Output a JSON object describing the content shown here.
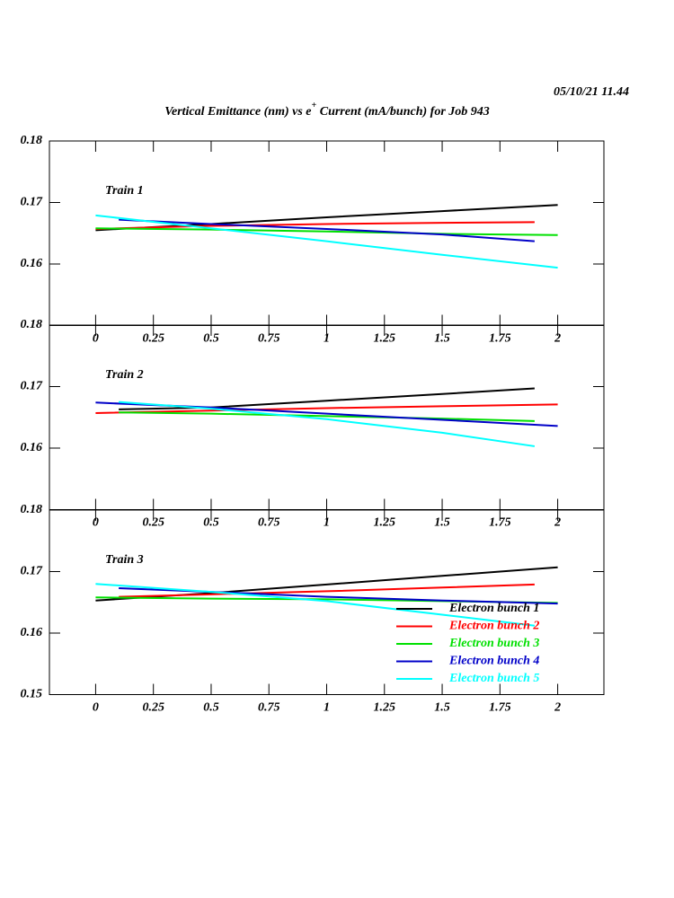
{
  "title": {
    "before": "Vertical Emittance (nm) vs e",
    "sup": "+",
    "after": " Current (mA/bunch) for Job 943"
  },
  "timestamp": "05/10/21   11.44",
  "chart_data": [
    {
      "type": "line",
      "title": "Train 1",
      "xlim": [
        -0.2,
        2.2
      ],
      "ylim": [
        0.15,
        0.18
      ],
      "xticks": [
        0,
        0.25,
        0.5,
        0.75,
        1,
        1.25,
        1.5,
        1.75,
        2
      ],
      "yticks": [
        0.16,
        0.17,
        0.18
      ],
      "series": [
        {
          "color": "#000000",
          "x": [
            0,
            0.5,
            1,
            1.5,
            2
          ],
          "values": [
            0.1655,
            0.1665,
            0.1676,
            0.1686,
            0.1696
          ]
        },
        {
          "color": "#ff0000",
          "x": [
            0,
            0.5,
            1,
            1.5,
            1.9
          ],
          "values": [
            0.1657,
            0.1662,
            0.1665,
            0.1667,
            0.1668
          ]
        },
        {
          "color": "#00e000",
          "x": [
            0,
            0.5,
            1,
            1.5,
            2
          ],
          "values": [
            0.1658,
            0.1656,
            0.1653,
            0.1649,
            0.1647
          ]
        },
        {
          "color": "#0000c8",
          "x": [
            0.1,
            0.5,
            1,
            1.5,
            1.9
          ],
          "values": [
            0.1672,
            0.1665,
            0.1657,
            0.1648,
            0.1637
          ]
        },
        {
          "color": "#00ffff",
          "x": [
            0,
            0.5,
            1,
            1.5,
            2
          ],
          "values": [
            0.1679,
            0.1658,
            0.1637,
            0.1615,
            0.1594
          ]
        }
      ]
    },
    {
      "type": "line",
      "title": "Train 2",
      "xlim": [
        -0.2,
        2.2
      ],
      "ylim": [
        0.15,
        0.18
      ],
      "xticks": [
        0,
        0.25,
        0.5,
        0.75,
        1,
        1.25,
        1.5,
        1.75,
        2
      ],
      "yticks": [
        0.16,
        0.17,
        0.18
      ],
      "series": [
        {
          "color": "#000000",
          "x": [
            0.1,
            0.5,
            1,
            1.5,
            1.9
          ],
          "values": [
            0.1663,
            0.1666,
            0.1677,
            0.1688,
            0.1697
          ]
        },
        {
          "color": "#ff0000",
          "x": [
            0,
            0.5,
            1,
            1.5,
            2
          ],
          "values": [
            0.1657,
            0.1661,
            0.1665,
            0.1668,
            0.1671
          ]
        },
        {
          "color": "#00e000",
          "x": [
            0.1,
            0.5,
            1,
            1.5,
            1.9
          ],
          "values": [
            0.1658,
            0.1656,
            0.1652,
            0.1648,
            0.1644
          ]
        },
        {
          "color": "#0000c8",
          "x": [
            0,
            0.5,
            1,
            1.5,
            2
          ],
          "values": [
            0.1674,
            0.1666,
            0.1656,
            0.1646,
            0.1636
          ]
        },
        {
          "color": "#00ffff",
          "x": [
            0.1,
            0.5,
            1,
            1.5,
            1.9
          ],
          "values": [
            0.1675,
            0.1664,
            0.1647,
            0.1625,
            0.1603
          ]
        }
      ]
    },
    {
      "type": "line",
      "title": "Train 3",
      "xlim": [
        -0.2,
        2.2
      ],
      "ylim": [
        0.15,
        0.18
      ],
      "xticks": [
        0,
        0.25,
        0.5,
        0.75,
        1,
        1.25,
        1.5,
        1.75,
        2
      ],
      "yticks": [
        0.15,
        0.16,
        0.17,
        0.18
      ],
      "series": [
        {
          "name": "Electron bunch 1",
          "color": "#000000",
          "x": [
            0,
            0.5,
            1,
            1.5,
            2
          ],
          "values": [
            0.1653,
            0.1665,
            0.1679,
            0.1693,
            0.1707
          ]
        },
        {
          "name": "Electron bunch 2",
          "color": "#ff0000",
          "x": [
            0.1,
            0.5,
            1,
            1.5,
            1.9
          ],
          "values": [
            0.1659,
            0.1663,
            0.1668,
            0.1674,
            0.1679
          ]
        },
        {
          "name": "Electron bunch 3",
          "color": "#00e000",
          "x": [
            0,
            0.5,
            1,
            1.5,
            2
          ],
          "values": [
            0.1658,
            0.1656,
            0.1655,
            0.1652,
            0.1649
          ]
        },
        {
          "name": "Electron bunch 4",
          "color": "#0000c8",
          "x": [
            0.1,
            0.5,
            1,
            1.5,
            2
          ],
          "values": [
            0.1673,
            0.1667,
            0.1659,
            0.1653,
            0.1648
          ]
        },
        {
          "name": "Electron bunch 5",
          "color": "#00ffff",
          "x": [
            0,
            0.5,
            1,
            1.5,
            1.9
          ],
          "values": [
            0.168,
            0.1667,
            0.1652,
            0.163,
            0.1612
          ]
        }
      ]
    }
  ]
}
